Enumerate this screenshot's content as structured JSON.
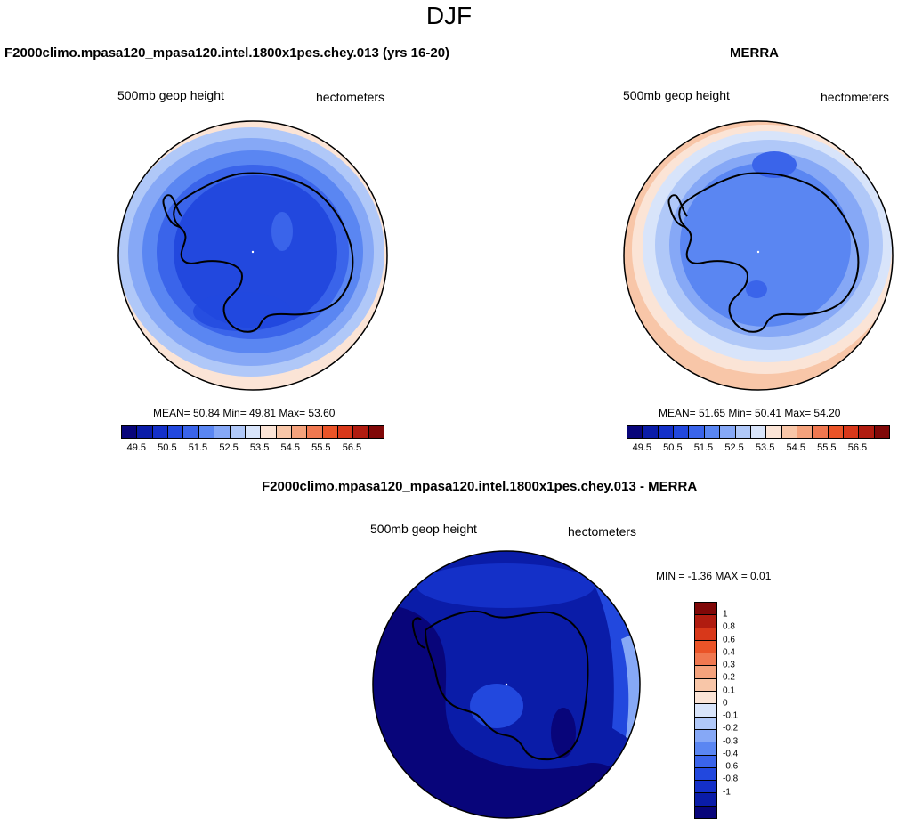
{
  "main_title": "DJF",
  "panels": {
    "model": {
      "title": "F2000climo.mpasa120_mpasa120.intel.1800x1pes.chey.013 (yrs 16-20)",
      "left_label": "500mb geop height",
      "right_label": "hectometers",
      "stats": "MEAN=  50.84  Min=  49.81  Max=  53.60"
    },
    "obs": {
      "title": "MERRA",
      "left_label": "500mb geop height",
      "right_label": "hectometers",
      "stats": "MEAN=  51.65  Min=  50.41  Max=  54.20"
    },
    "diff": {
      "title": "F2000climo.mpasa120_mpasa120.intel.1800x1pes.chey.013 - MERRA",
      "left_label": "500mb geop height",
      "right_label": "hectometers",
      "stats": "MIN =  -1.36 MAX =   0.01"
    }
  },
  "colorbar_abs": {
    "colors": [
      "#08057a",
      "#0a1ca8",
      "#1430c8",
      "#2248de",
      "#3a64ea",
      "#5a86f2",
      "#86a8f6",
      "#b0c8f8",
      "#d8e4fa",
      "#fbe4d6",
      "#f8c6a8",
      "#f4a27c",
      "#f07850",
      "#ea5428",
      "#d8381a",
      "#b01c10",
      "#800808"
    ],
    "ticks": [
      "49.5",
      "50.5",
      "51.5",
      "52.5",
      "53.5",
      "54.5",
      "55.5",
      "56.5"
    ]
  },
  "colorbar_diff": {
    "colors": [
      "#800808",
      "#b01c10",
      "#d8381a",
      "#ea5428",
      "#f07850",
      "#f4a27c",
      "#f8c6a8",
      "#fbe4d6",
      "#d8e4fa",
      "#b0c8f8",
      "#86a8f6",
      "#5a86f2",
      "#3a64ea",
      "#2248de",
      "#1430c8",
      "#0a1ca8",
      "#08057a"
    ],
    "ticks": [
      "1",
      "0.8",
      "0.6",
      "0.4",
      "0.3",
      "0.2",
      "0.1",
      "0",
      "-0.1",
      "-0.2",
      "-0.3",
      "-0.4",
      "-0.6",
      "-0.8",
      "-1"
    ]
  },
  "map_colors": {
    "model_rings": [
      "#fbe4d6",
      "#b0c8f8",
      "#86a8f6",
      "#5a86f2",
      "#3a64ea",
      "#2248de"
    ],
    "obs_rings": [
      "#f8c6a8",
      "#fbe4d6",
      "#d8e4fa",
      "#b0c8f8",
      "#86a8f6",
      "#5a86f2",
      "#3a64ea"
    ],
    "diff_base": "#0a1ca8",
    "diff_dark": "#08057a",
    "diff_mid": "#1430c8",
    "diff_light": "#2248de",
    "diff_edge": "#86a8f6"
  }
}
